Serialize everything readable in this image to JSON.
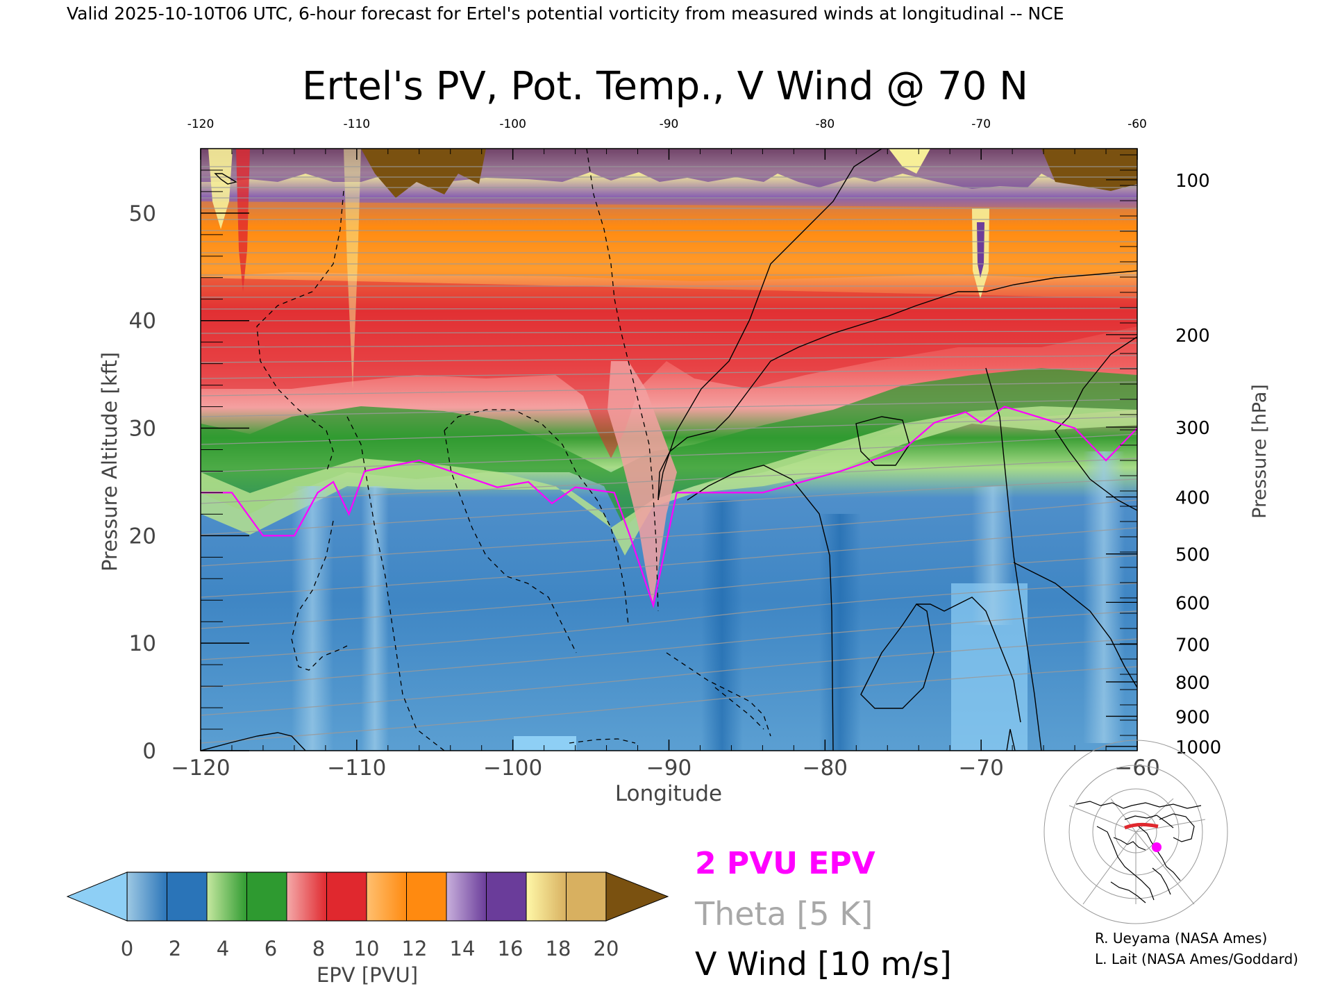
{
  "header": {
    "valid_line": "Valid 2025-10-10T06 UTC, 6-hour forecast for Ertel's potential vorticity from measured winds at longitudinal -- NCE"
  },
  "chart_data": {
    "type": "heatmap",
    "title": "Ertel's PV, Pot. Temp., V Wind @ 70 N",
    "xlabel": "Longitude",
    "ylabel_left": "Pressure Altitude [kft]",
    "ylabel_right": "Pressure [hPa]",
    "xlim": [
      -120,
      -60
    ],
    "ylim_kft": [
      0,
      56
    ],
    "x_ticks_bottom": [
      "−120",
      "−110",
      "−100",
      "−90",
      "−80",
      "−70",
      "−60"
    ],
    "x_ticks_top": [
      "-120",
      "-110",
      "-100",
      "-90",
      "-80",
      "-70",
      "-60"
    ],
    "y_ticks_left": [
      "0",
      "10",
      "20",
      "30",
      "40",
      "50"
    ],
    "pressure_ticks": [
      {
        "label": "100",
        "kft": 53.1
      },
      {
        "label": "200",
        "kft": 38.7
      },
      {
        "label": "300",
        "kft": 30.1
      },
      {
        "label": "400",
        "kft": 23.6
      },
      {
        "label": "500",
        "kft": 18.3
      },
      {
        "label": "600",
        "kft": 13.8
      },
      {
        "label": "700",
        "kft": 9.9
      },
      {
        "label": "800",
        "kft": 6.4
      },
      {
        "label": "900",
        "kft": 3.2
      },
      {
        "label": "1000",
        "kft": 0.4
      }
    ],
    "pv_2pvu_level_kft": [
      {
        "x": -120,
        "y": 24
      },
      {
        "x": -118,
        "y": 24
      },
      {
        "x": -116,
        "y": 20
      },
      {
        "x": -114,
        "y": 20
      },
      {
        "x": -112.5,
        "y": 24
      },
      {
        "x": -111.5,
        "y": 25
      },
      {
        "x": -110.5,
        "y": 22
      },
      {
        "x": -109.5,
        "y": 26
      },
      {
        "x": -106,
        "y": 27
      },
      {
        "x": -104,
        "y": 26
      },
      {
        "x": -101,
        "y": 24.5
      },
      {
        "x": -99,
        "y": 25
      },
      {
        "x": -97.5,
        "y": 23
      },
      {
        "x": -96,
        "y": 24.5
      },
      {
        "x": -93.5,
        "y": 24
      },
      {
        "x": -92.5,
        "y": 20
      },
      {
        "x": -91,
        "y": 13.5
      },
      {
        "x": -90.5,
        "y": 17
      },
      {
        "x": -89.5,
        "y": 24
      },
      {
        "x": -84,
        "y": 24
      },
      {
        "x": -79,
        "y": 26
      },
      {
        "x": -75,
        "y": 28
      },
      {
        "x": -73,
        "y": 30.5
      },
      {
        "x": -71,
        "y": 31.5
      },
      {
        "x": -70,
        "y": 30.5
      },
      {
        "x": -68.5,
        "y": 32
      },
      {
        "x": -64,
        "y": 30
      },
      {
        "x": -62,
        "y": 27
      },
      {
        "x": -60,
        "y": 30
      }
    ],
    "epv_colorbar": {
      "label": "EPV [PVU]",
      "ticks": [
        "0",
        "2",
        "4",
        "6",
        "8",
        "10",
        "12",
        "14",
        "16",
        "18",
        "20"
      ],
      "colors": [
        "#9ec9e4",
        "#2a74b8",
        "#c6e8a0",
        "#2e9a30",
        "#f4aaaa",
        "#e0282e",
        "#ffc070",
        "#ff8a10",
        "#c8b0dc",
        "#6a3c9a",
        "#fff8a8",
        "#d8b060"
      ],
      "under_color": "#8ecff5",
      "over_color": "#7a5110"
    },
    "legend": [
      {
        "label": "2 PVU EPV",
        "color": "#ff00ff"
      },
      {
        "label": "Theta [5 K]",
        "color": "#a8a8a8"
      },
      {
        "label": "V Wind [10 m/s]",
        "color": "#000000"
      }
    ],
    "grid": false
  },
  "credits": {
    "line1": "R. Ueyama (NASA Ames)",
    "line2": "L. Lait (NASA Ames/Goddard)"
  },
  "inset_map": {
    "name": "polar-stereographic-locator-map",
    "marker_color": "#ff00ff",
    "track_color": "#e0282e"
  }
}
